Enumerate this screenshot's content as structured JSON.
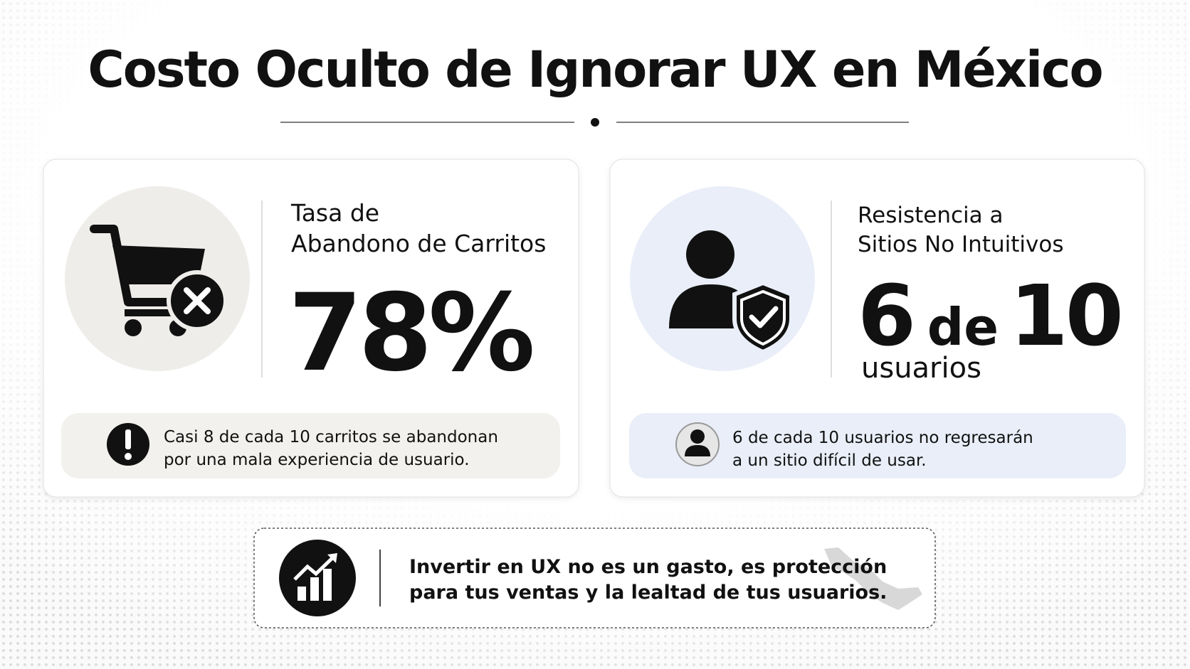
{
  "header": {
    "title": "Costo Oculto de Ignorar UX en México"
  },
  "cards": [
    {
      "title_lines": [
        "Tasa de",
        "Abandono de Carritos"
      ],
      "stat": "78%",
      "note_lines": [
        "Casi 8 de cada 10 carritos se abandonan",
        "por una mala experiencia de usuario."
      ]
    },
    {
      "title_lines": [
        "Resistencia a",
        "Sitios No Intuitivos"
      ],
      "stat_parts": [
        "6",
        "de",
        "10"
      ],
      "stat_unit": "usuarios",
      "note_lines": [
        "6 de cada 10 usuarios no regresarán",
        "a un sitio difícil de usar."
      ]
    }
  ],
  "footer": {
    "lines": [
      "Invertir en UX no es un gasto, es protección",
      "para tus ventas y la lealtad de tus usuarios."
    ]
  }
}
